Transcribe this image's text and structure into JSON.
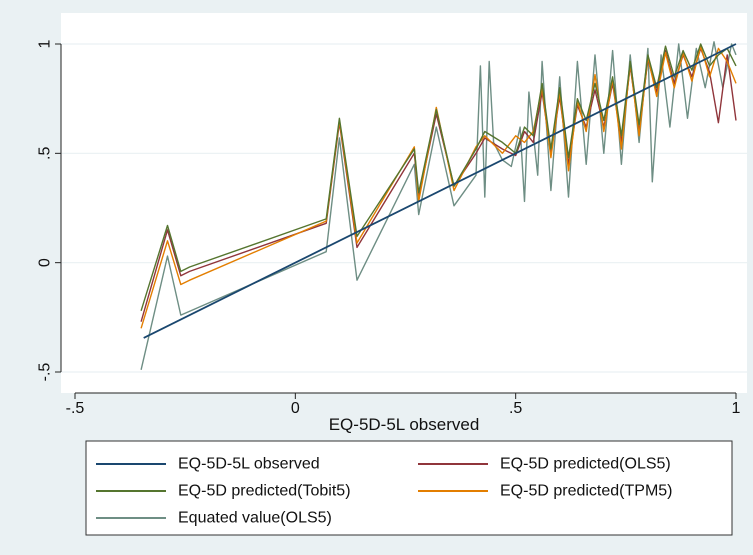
{
  "chart_data": {
    "type": "line",
    "title": "",
    "xlabel": "EQ-5D-5L observed",
    "ylabel": "",
    "xlim": [
      -0.55,
      1.01
    ],
    "ylim": [
      -0.52,
      1.02
    ],
    "x_ticks": [
      {
        "value": -0.5,
        "label": "-.5"
      },
      {
        "value": 0,
        "label": "0"
      },
      {
        "value": 0.5,
        "label": ".5"
      },
      {
        "value": 1,
        "label": "1"
      }
    ],
    "y_ticks": [
      {
        "value": -0.5,
        "label": "-.5"
      },
      {
        "value": 0,
        "label": "0"
      },
      {
        "value": 0.5,
        "label": ".5"
      },
      {
        "value": 1,
        "label": "1"
      }
    ],
    "grid": "horizontal",
    "legend_position": "bottom",
    "series": [
      {
        "name": "EQ-5D-5L observed",
        "color": "#1a476f",
        "points": [
          [
            -0.344,
            -0.344
          ],
          [
            1.0,
            1.0
          ]
        ]
      },
      {
        "name": "EQ-5D predicted(OLS5)",
        "color": "#90353b",
        "points": [
          [
            -0.35,
            -0.27
          ],
          [
            -0.29,
            0.15
          ],
          [
            -0.26,
            -0.06
          ],
          [
            -0.24,
            -0.04
          ],
          [
            0.07,
            0.18
          ],
          [
            0.1,
            0.64
          ],
          [
            0.14,
            0.07
          ],
          [
            0.27,
            0.5
          ],
          [
            0.28,
            0.3
          ],
          [
            0.32,
            0.68
          ],
          [
            0.36,
            0.35
          ],
          [
            0.41,
            0.5
          ],
          [
            0.43,
            0.57
          ],
          [
            0.47,
            0.52
          ],
          [
            0.5,
            0.49
          ],
          [
            0.52,
            0.6
          ],
          [
            0.54,
            0.55
          ],
          [
            0.56,
            0.78
          ],
          [
            0.58,
            0.5
          ],
          [
            0.6,
            0.76
          ],
          [
            0.62,
            0.45
          ],
          [
            0.64,
            0.72
          ],
          [
            0.66,
            0.62
          ],
          [
            0.68,
            0.79
          ],
          [
            0.7,
            0.62
          ],
          [
            0.72,
            0.82
          ],
          [
            0.74,
            0.55
          ],
          [
            0.76,
            0.9
          ],
          [
            0.78,
            0.6
          ],
          [
            0.8,
            0.93
          ],
          [
            0.82,
            0.78
          ],
          [
            0.84,
            0.97
          ],
          [
            0.86,
            0.82
          ],
          [
            0.88,
            0.95
          ],
          [
            0.9,
            0.85
          ],
          [
            0.92,
            0.98
          ],
          [
            0.94,
            0.87
          ],
          [
            0.96,
            0.64
          ],
          [
            0.98,
            0.95
          ],
          [
            1.0,
            0.65
          ]
        ]
      },
      {
        "name": "EQ-5D predicted(Tobit5)",
        "color": "#55752f",
        "points": [
          [
            -0.35,
            -0.22
          ],
          [
            -0.29,
            0.17
          ],
          [
            -0.26,
            -0.04
          ],
          [
            -0.24,
            -0.02
          ],
          [
            0.07,
            0.2
          ],
          [
            0.1,
            0.66
          ],
          [
            0.14,
            0.12
          ],
          [
            0.27,
            0.52
          ],
          [
            0.28,
            0.32
          ],
          [
            0.32,
            0.7
          ],
          [
            0.36,
            0.35
          ],
          [
            0.41,
            0.52
          ],
          [
            0.43,
            0.6
          ],
          [
            0.47,
            0.55
          ],
          [
            0.5,
            0.5
          ],
          [
            0.52,
            0.62
          ],
          [
            0.54,
            0.58
          ],
          [
            0.56,
            0.82
          ],
          [
            0.58,
            0.52
          ],
          [
            0.6,
            0.8
          ],
          [
            0.62,
            0.48
          ],
          [
            0.64,
            0.75
          ],
          [
            0.66,
            0.65
          ],
          [
            0.68,
            0.82
          ],
          [
            0.7,
            0.65
          ],
          [
            0.72,
            0.85
          ],
          [
            0.74,
            0.58
          ],
          [
            0.76,
            0.92
          ],
          [
            0.78,
            0.63
          ],
          [
            0.8,
            0.95
          ],
          [
            0.82,
            0.8
          ],
          [
            0.84,
            0.99
          ],
          [
            0.86,
            0.85
          ],
          [
            0.88,
            0.97
          ],
          [
            0.9,
            0.88
          ],
          [
            0.92,
            1.0
          ],
          [
            0.94,
            0.9
          ],
          [
            0.96,
            0.95
          ],
          [
            0.98,
            0.98
          ],
          [
            1.0,
            0.9
          ]
        ]
      },
      {
        "name": "EQ-5D predicted(TPM5)",
        "color": "#e37e00",
        "points": [
          [
            -0.35,
            -0.3
          ],
          [
            -0.29,
            0.1
          ],
          [
            -0.26,
            -0.1
          ],
          [
            -0.24,
            -0.08
          ],
          [
            0.07,
            0.19
          ],
          [
            0.1,
            0.65
          ],
          [
            0.14,
            0.09
          ],
          [
            0.27,
            0.53
          ],
          [
            0.28,
            0.28
          ],
          [
            0.32,
            0.71
          ],
          [
            0.36,
            0.33
          ],
          [
            0.41,
            0.53
          ],
          [
            0.43,
            0.58
          ],
          [
            0.47,
            0.5
          ],
          [
            0.5,
            0.58
          ],
          [
            0.52,
            0.55
          ],
          [
            0.54,
            0.6
          ],
          [
            0.56,
            0.8
          ],
          [
            0.58,
            0.48
          ],
          [
            0.6,
            0.78
          ],
          [
            0.62,
            0.42
          ],
          [
            0.64,
            0.74
          ],
          [
            0.66,
            0.6
          ],
          [
            0.68,
            0.86
          ],
          [
            0.7,
            0.6
          ],
          [
            0.72,
            0.84
          ],
          [
            0.74,
            0.52
          ],
          [
            0.76,
            0.91
          ],
          [
            0.78,
            0.58
          ],
          [
            0.8,
            0.94
          ],
          [
            0.82,
            0.76
          ],
          [
            0.84,
            0.96
          ],
          [
            0.86,
            0.8
          ],
          [
            0.88,
            0.96
          ],
          [
            0.9,
            0.83
          ],
          [
            0.92,
            0.99
          ],
          [
            0.94,
            0.85
          ],
          [
            0.96,
            0.98
          ],
          [
            0.98,
            0.92
          ],
          [
            1.0,
            0.82
          ]
        ]
      },
      {
        "name": "Equated value(OLS5)",
        "color": "#6e8e84",
        "points": [
          [
            -0.35,
            -0.49
          ],
          [
            -0.29,
            0.03
          ],
          [
            -0.26,
            -0.24
          ],
          [
            0.07,
            0.05
          ],
          [
            0.1,
            0.57
          ],
          [
            0.14,
            -0.08
          ],
          [
            0.27,
            0.45
          ],
          [
            0.28,
            0.22
          ],
          [
            0.32,
            0.62
          ],
          [
            0.36,
            0.26
          ],
          [
            0.41,
            0.4
          ],
          [
            0.42,
            0.9
          ],
          [
            0.43,
            0.3
          ],
          [
            0.44,
            0.92
          ],
          [
            0.45,
            0.55
          ],
          [
            0.47,
            0.47
          ],
          [
            0.49,
            0.44
          ],
          [
            0.51,
            0.62
          ],
          [
            0.52,
            0.28
          ],
          [
            0.53,
            0.78
          ],
          [
            0.55,
            0.4
          ],
          [
            0.56,
            0.92
          ],
          [
            0.58,
            0.33
          ],
          [
            0.6,
            0.85
          ],
          [
            0.62,
            0.3
          ],
          [
            0.64,
            0.92
          ],
          [
            0.66,
            0.45
          ],
          [
            0.68,
            0.95
          ],
          [
            0.7,
            0.5
          ],
          [
            0.72,
            0.97
          ],
          [
            0.74,
            0.45
          ],
          [
            0.76,
            0.95
          ],
          [
            0.78,
            0.55
          ],
          [
            0.8,
            0.98
          ],
          [
            0.81,
            0.37
          ],
          [
            0.83,
            0.95
          ],
          [
            0.85,
            0.62
          ],
          [
            0.87,
            1.0
          ],
          [
            0.89,
            0.66
          ],
          [
            0.91,
            0.98
          ],
          [
            0.93,
            0.8
          ],
          [
            0.95,
            1.01
          ],
          [
            0.97,
            0.8
          ],
          [
            0.99,
            1.0
          ],
          [
            1.0,
            0.95
          ]
        ]
      }
    ]
  }
}
